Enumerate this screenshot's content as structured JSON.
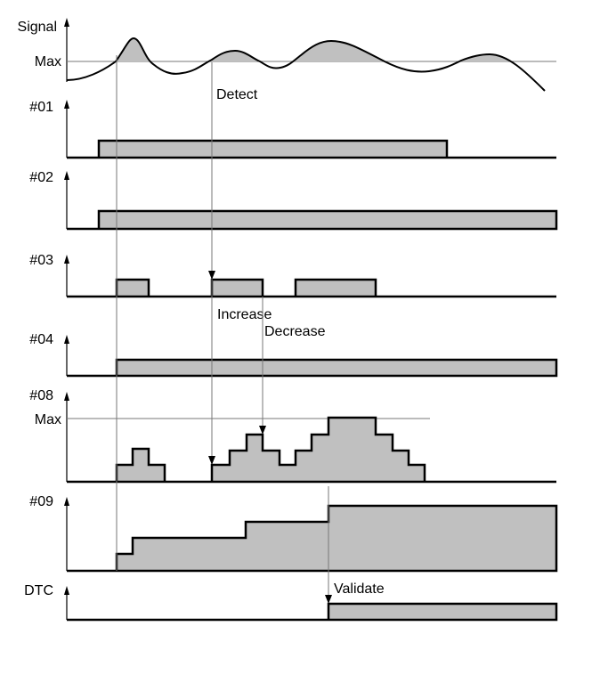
{
  "signal": {
    "label": "Signal",
    "max_label": "Max",
    "annotation": "Detect"
  },
  "rows": [
    {
      "label": "#01"
    },
    {
      "label": "#02"
    },
    {
      "label": "#03",
      "annotations": [
        "Increase",
        "Decrease"
      ]
    },
    {
      "label": "#04"
    },
    {
      "label": "#08",
      "max_label": "Max"
    },
    {
      "label": "#09"
    },
    {
      "label": "DTC",
      "annotations": [
        "Validate"
      ]
    }
  ]
}
